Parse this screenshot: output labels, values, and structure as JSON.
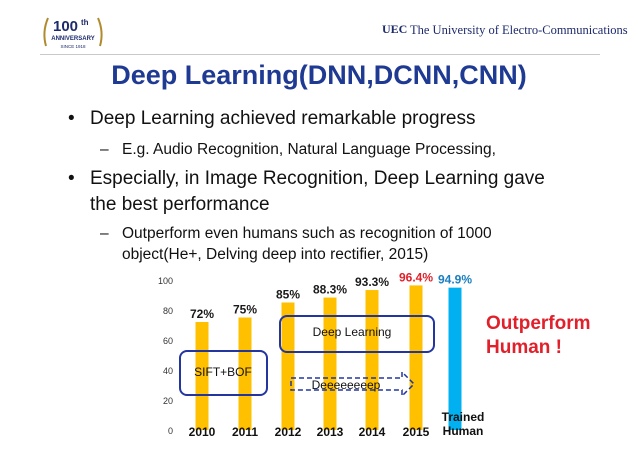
{
  "header": {
    "anniversary_number": "100",
    "anniversary_suffix": "th",
    "anniversary_word": "ANNIVERSARY",
    "anniversary_since": "SINCE 1918",
    "uec_mark": "UEC",
    "university_name": "The University of Electro-Communications"
  },
  "slide": {
    "title": "Deep Learning(DNN,DCNN,CNN)",
    "bullets": [
      {
        "text": "Deep Learning achieved remarkable progress",
        "sub": [
          "E.g. Audio Recognition, Natural Language Processing,"
        ]
      },
      {
        "text_line1": "Especially, in Image Recognition, Deep Learning gave",
        "text_line2": "the best performance",
        "sub_line1": "Outperform even humans such as recognition of 1000",
        "sub_line2": "object(He+, Delving deep into rectifier, 2015)"
      }
    ],
    "bullet_symbol": "•",
    "dash_symbol": "–"
  },
  "chart_data": {
    "type": "bar",
    "categories": [
      "2010",
      "2011",
      "2012",
      "2013",
      "2014",
      "2015",
      "Trained Human"
    ],
    "category_lines": [
      [
        "2010"
      ],
      [
        "2011"
      ],
      [
        "2012"
      ],
      [
        "2013"
      ],
      [
        "2014"
      ],
      [
        "2015"
      ],
      [
        "Trained",
        "Human"
      ]
    ],
    "values": [
      72,
      75,
      85,
      88.3,
      93.3,
      96.4,
      94.9
    ],
    "value_labels": [
      "72%",
      "75%",
      "85%",
      "88.3%",
      "93.3%",
      "96.4%",
      "94.9%"
    ],
    "label_colors": [
      "#1a1a1a",
      "#1a1a1a",
      "#1a1a1a",
      "#1a1a1a",
      "#1a1a1a",
      "#e0202a",
      "#1a7fc1"
    ],
    "bar_colors": [
      "#ffc000",
      "#ffc000",
      "#ffc000",
      "#ffc000",
      "#ffc000",
      "#ffc000",
      "#00b0f0"
    ],
    "ylim": [
      0,
      100
    ],
    "yticks": [
      0,
      20,
      40,
      60,
      80,
      100
    ],
    "grid": false,
    "annotations": {
      "sift_bof": "SIFT+BOF",
      "deep_learning": "Deep Learning",
      "deeper": "Deeeeeeeep",
      "outperform_line1": "Outperform",
      "outperform_line2": "Human !"
    }
  }
}
